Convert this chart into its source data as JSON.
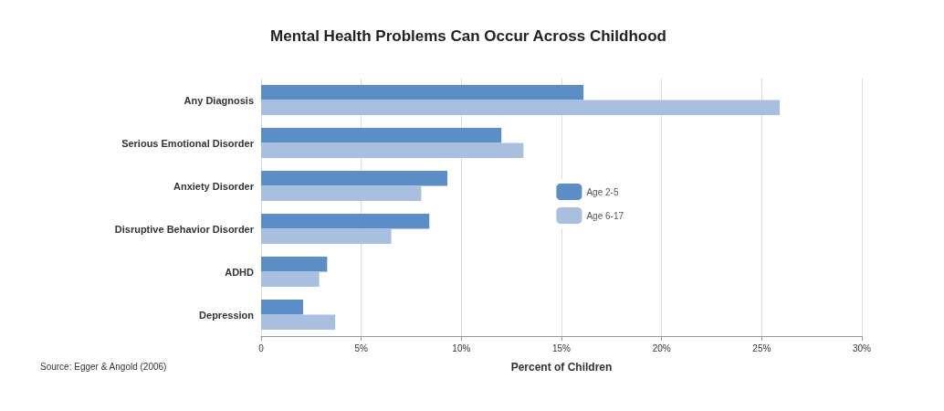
{
  "chart_data": {
    "type": "bar",
    "orientation": "horizontal",
    "title": "Mental Health Problems Can Occur Across Childhood",
    "xlabel": "Percent of Children",
    "categories": [
      "Any Diagnosis",
      "Serious Emotional Disorder",
      "Anxiety Disorder",
      "Disruptive Behavior Disorder",
      "ADHD",
      "Depression"
    ],
    "series": [
      {
        "name": "Age 2-5",
        "color": "#5b8ec6",
        "values": [
          16.1,
          12.0,
          9.3,
          8.4,
          3.3,
          2.1
        ]
      },
      {
        "name": "Age 6-17",
        "color": "#a9bfdf",
        "values": [
          25.9,
          13.1,
          8.0,
          6.5,
          2.9,
          3.7
        ]
      }
    ],
    "xlim": [
      0,
      30
    ],
    "xticks": [
      0,
      {
        "value": 5,
        "label": "5%"
      },
      {
        "value": 10,
        "label": "10%"
      },
      {
        "value": 15,
        "label": "15%"
      },
      {
        "value": 20,
        "label": "20%"
      },
      {
        "value": 25,
        "label": "25%"
      },
      {
        "value": 30,
        "label": "30%"
      }
    ],
    "grid": "x",
    "legend": "right",
    "annotations": [
      "Source: Egger & Angold (2006)"
    ]
  }
}
